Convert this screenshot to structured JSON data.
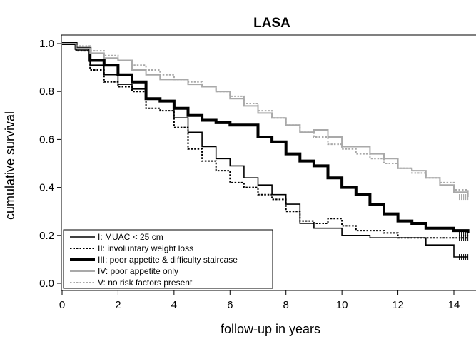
{
  "chart_data": {
    "type": "line",
    "title": "LASA",
    "xlabel": "follow-up in years",
    "ylabel": "cumulative survival",
    "xlim": [
      0,
      15
    ],
    "ylim": [
      0,
      1.05
    ],
    "xticks": [
      0,
      2,
      4,
      6,
      8,
      10,
      12,
      14
    ],
    "yticks": [
      0.0,
      0.2,
      0.4,
      0.6,
      0.8,
      1.0
    ],
    "xtick_labels": [
      "0",
      "2",
      "4",
      "6",
      "8",
      "10",
      "12",
      "14"
    ],
    "ytick_labels": [
      "0.0",
      "0.2",
      "0.4",
      "0.6",
      "0.8",
      "1.0"
    ],
    "legend_position": "bottom-left",
    "series": [
      {
        "name": "I: MUAC < 25 cm",
        "color": "#000000",
        "style": "thin-solid",
        "x": [
          0,
          0.5,
          1.0,
          1.5,
          2.0,
          2.5,
          3.0,
          3.5,
          4.0,
          4.5,
          5.0,
          5.5,
          6.0,
          6.5,
          7.0,
          7.5,
          8.0,
          8.5,
          9.0,
          10.0,
          11.0,
          12.0,
          13.0,
          14.0,
          14.5
        ],
        "y": [
          1.0,
          0.97,
          0.91,
          0.87,
          0.83,
          0.81,
          0.77,
          0.76,
          0.69,
          0.63,
          0.57,
          0.52,
          0.49,
          0.44,
          0.41,
          0.37,
          0.33,
          0.25,
          0.23,
          0.2,
          0.19,
          0.19,
          0.16,
          0.11,
          0.11
        ]
      },
      {
        "name": "II: involuntary weight loss",
        "color": "#000000",
        "style": "dotted",
        "x": [
          0,
          0.5,
          1.0,
          1.5,
          2.0,
          2.5,
          3.0,
          3.5,
          4.0,
          4.5,
          5.0,
          5.5,
          6.0,
          6.5,
          7.0,
          7.5,
          8.0,
          8.5,
          9.0,
          9.5,
          10.0,
          10.5,
          11.0,
          11.5,
          12.0,
          13.0,
          14.0,
          14.5
        ],
        "y": [
          1.0,
          0.97,
          0.89,
          0.84,
          0.82,
          0.8,
          0.73,
          0.72,
          0.65,
          0.56,
          0.51,
          0.47,
          0.42,
          0.4,
          0.37,
          0.35,
          0.3,
          0.26,
          0.25,
          0.27,
          0.24,
          0.22,
          0.22,
          0.21,
          0.19,
          0.19,
          0.19,
          0.19
        ]
      },
      {
        "name": "III: poor appetite & difficulty staircase",
        "color": "#000000",
        "style": "thick-solid",
        "x": [
          0,
          0.5,
          1.0,
          1.5,
          2.0,
          2.5,
          3.0,
          3.5,
          4.0,
          4.5,
          5.0,
          5.5,
          6.0,
          6.5,
          7.0,
          7.5,
          8.0,
          8.5,
          9.0,
          9.5,
          10.0,
          10.5,
          11.0,
          11.5,
          12.0,
          12.5,
          13.0,
          13.5,
          14.0,
          14.5
        ],
        "y": [
          1.0,
          0.98,
          0.93,
          0.91,
          0.87,
          0.84,
          0.77,
          0.76,
          0.73,
          0.7,
          0.68,
          0.67,
          0.66,
          0.66,
          0.61,
          0.59,
          0.54,
          0.51,
          0.49,
          0.44,
          0.4,
          0.37,
          0.33,
          0.29,
          0.26,
          0.25,
          0.23,
          0.23,
          0.22,
          0.21
        ]
      },
      {
        "name": "IV: poor appetite only",
        "color": "#a9a9a9",
        "style": "solid",
        "x": [
          0,
          0.5,
          1.0,
          1.5,
          2.0,
          2.5,
          3.0,
          3.5,
          4.0,
          4.5,
          5.0,
          5.5,
          6.0,
          6.5,
          7.0,
          7.5,
          8.0,
          8.5,
          9.0,
          9.5,
          10.0,
          10.5,
          11.0,
          11.5,
          12.0,
          12.5,
          13.0,
          13.5,
          14.0,
          14.5
        ],
        "y": [
          1.0,
          0.98,
          0.96,
          0.94,
          0.93,
          0.89,
          0.87,
          0.85,
          0.85,
          0.83,
          0.82,
          0.8,
          0.77,
          0.74,
          0.71,
          0.69,
          0.66,
          0.63,
          0.64,
          0.61,
          0.57,
          0.57,
          0.54,
          0.52,
          0.48,
          0.47,
          0.44,
          0.41,
          0.38,
          0.36
        ]
      },
      {
        "name": "V: no risk factors present",
        "color": "#a9a9a9",
        "style": "dotted",
        "x": [
          0,
          0.5,
          1.0,
          1.5,
          2.0,
          2.5,
          3.0,
          3.5,
          4.0,
          4.5,
          5.0,
          5.5,
          6.0,
          6.5,
          7.0,
          7.5,
          8.0,
          8.5,
          9.0,
          9.5,
          10.0,
          10.5,
          11.0,
          11.5,
          12.0,
          12.5,
          13.0,
          13.5,
          14.0,
          14.5
        ],
        "y": [
          1.0,
          0.99,
          0.97,
          0.95,
          0.93,
          0.91,
          0.89,
          0.87,
          0.85,
          0.84,
          0.82,
          0.8,
          0.78,
          0.75,
          0.72,
          0.69,
          0.66,
          0.63,
          0.61,
          0.58,
          0.56,
          0.54,
          0.52,
          0.5,
          0.48,
          0.46,
          0.44,
          0.42,
          0.39,
          0.36
        ]
      }
    ]
  },
  "legend": {
    "items": [
      "I: MUAC < 25 cm",
      "II: involuntary weight loss",
      "III: poor appetite & difficulty staircase",
      "IV: poor appetite only",
      "V: no risk factors present"
    ]
  }
}
